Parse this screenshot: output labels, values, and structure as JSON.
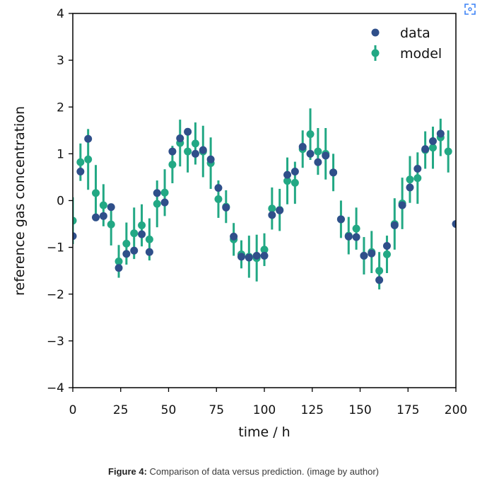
{
  "caption": {
    "label": "Figure 4:",
    "text": "Comparison of data versus prediction. (image by author)"
  },
  "toolbar": {
    "expand_icon": "expand-corners-icon"
  },
  "colors": {
    "data": "#2f4f8a",
    "model": "#22a884",
    "axis": "#000000"
  },
  "chart_data": {
    "type": "scatter",
    "xlabel": "time / h",
    "ylabel": "reference gas concentration",
    "xlim": [
      0,
      200
    ],
    "ylim": [
      -4,
      4
    ],
    "xticks": [
      0,
      25,
      50,
      75,
      100,
      125,
      150,
      175,
      200
    ],
    "yticks": [
      -4,
      -3,
      -2,
      -1,
      0,
      1,
      2,
      3,
      4
    ],
    "xtick_labels": [
      "0",
      "25",
      "50",
      "75",
      "100",
      "125",
      "150",
      "175",
      "200"
    ],
    "ytick_labels": [
      "−4",
      "−3",
      "−2",
      "−1",
      "0",
      "1",
      "2",
      "3",
      "4"
    ],
    "grid": false,
    "legend_position": "top-right",
    "series": [
      {
        "name": "data",
        "marker": "point",
        "x": [
          0,
          4,
          8,
          12,
          16,
          20,
          24,
          28,
          32,
          36,
          40,
          44,
          48,
          52,
          56,
          60,
          64,
          68,
          72,
          76,
          80,
          84,
          88,
          92,
          96,
          100,
          104,
          108,
          112,
          116,
          120,
          124,
          128,
          132,
          136,
          140,
          144,
          148,
          152,
          156,
          160,
          164,
          168,
          172,
          176,
          180,
          184,
          188,
          192,
          200
        ],
        "y": [
          -0.76,
          0.62,
          1.32,
          -0.36,
          -0.33,
          -0.14,
          -1.44,
          -1.14,
          -1.07,
          -0.72,
          -1.1,
          0.16,
          -0.04,
          1.05,
          1.33,
          1.47,
          1.0,
          1.08,
          0.88,
          0.27,
          -0.15,
          -0.77,
          -1.2,
          -1.22,
          -1.18,
          -1.18,
          -0.31,
          -0.21,
          0.55,
          0.62,
          1.15,
          1.0,
          0.82,
          0.96,
          0.6,
          -0.4,
          -0.77,
          -0.78,
          -1.18,
          -1.13,
          -1.7,
          -0.97,
          -0.53,
          -0.1,
          0.28,
          0.68,
          1.1,
          1.27,
          1.43,
          -0.5
        ]
      },
      {
        "name": "model",
        "marker": "point-errorbar",
        "x": [
          0,
          4,
          8,
          12,
          16,
          20,
          24,
          28,
          32,
          36,
          40,
          44,
          48,
          52,
          56,
          60,
          64,
          68,
          72,
          76,
          80,
          84,
          88,
          92,
          96,
          100,
          104,
          108,
          112,
          116,
          120,
          124,
          128,
          132,
          136,
          140,
          144,
          148,
          152,
          156,
          160,
          164,
          168,
          172,
          176,
          180,
          184,
          188,
          192,
          196
        ],
        "y": [
          -0.43,
          0.82,
          0.88,
          0.16,
          -0.1,
          -0.51,
          -1.3,
          -0.92,
          -0.7,
          -0.53,
          -0.83,
          -0.07,
          0.17,
          0.77,
          1.23,
          1.05,
          1.22,
          1.05,
          0.8,
          0.03,
          -0.13,
          -0.83,
          -1.15,
          -1.2,
          -1.23,
          -1.05,
          -0.17,
          -0.2,
          0.42,
          0.38,
          1.1,
          1.42,
          1.05,
          1.0,
          0.6,
          -0.4,
          -0.75,
          -0.6,
          -1.18,
          -1.1,
          -1.5,
          -1.15,
          -0.5,
          -0.06,
          0.45,
          0.48,
          1.08,
          1.13,
          1.35,
          1.05
        ],
        "err": [
          0.5,
          0.4,
          0.65,
          0.6,
          0.45,
          0.45,
          0.35,
          0.45,
          0.55,
          0.45,
          0.45,
          0.5,
          0.5,
          0.4,
          0.5,
          0.45,
          0.45,
          0.55,
          0.55,
          0.4,
          0.35,
          0.35,
          0.3,
          0.45,
          0.5,
          0.35,
          0.45,
          0.45,
          0.5,
          0.45,
          0.4,
          0.55,
          0.5,
          0.55,
          0.4,
          0.4,
          0.4,
          0.45,
          0.4,
          0.45,
          0.4,
          0.4,
          0.55,
          0.55,
          0.5,
          0.55,
          0.4,
          0.45,
          0.4,
          0.45
        ]
      }
    ]
  }
}
